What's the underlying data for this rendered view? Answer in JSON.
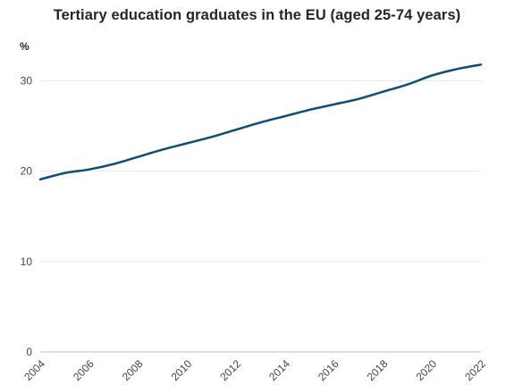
{
  "chart_data": {
    "type": "line",
    "title": "Tertiary education graduates in the EU (aged 25-74 years)",
    "xlabel": "",
    "ylabel": "%",
    "x": [
      2004,
      2005,
      2006,
      2007,
      2008,
      2009,
      2010,
      2011,
      2012,
      2013,
      2014,
      2015,
      2016,
      2017,
      2018,
      2019,
      2020,
      2021,
      2022
    ],
    "series": [
      {
        "values": [
          19.1,
          19.8,
          20.2,
          20.8,
          21.6,
          22.4,
          23.1,
          23.8,
          24.6,
          25.4,
          26.1,
          26.8,
          27.4,
          28.0,
          28.8,
          29.6,
          30.6,
          31.3,
          31.8
        ],
        "color": "#0b4f79"
      }
    ],
    "xticks": [
      "2004",
      "2006",
      "2008",
      "2010",
      "2012",
      "2014",
      "2016",
      "2018",
      "2020",
      "2022"
    ],
    "yticks": [
      "0",
      "10",
      "20",
      "30"
    ],
    "xlim": [
      2004,
      2022
    ],
    "ylim": [
      0,
      35
    ],
    "grid": true,
    "grid_color": "#e6e6e6",
    "axis_color": "#bfbfbf"
  }
}
